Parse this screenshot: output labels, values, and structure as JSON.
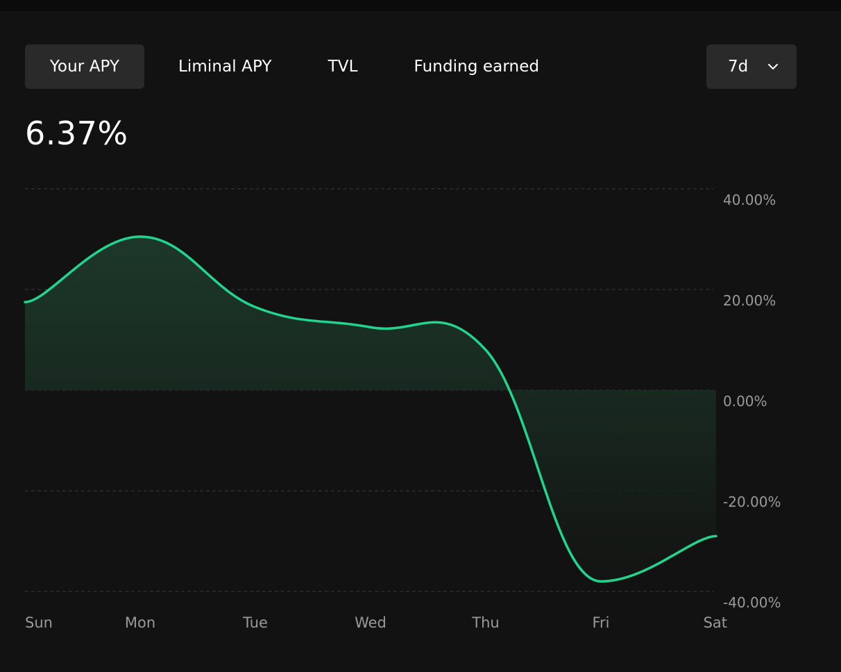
{
  "tabs": [
    {
      "label": "Your APY",
      "active": true
    },
    {
      "label": "Liminal APY",
      "active": false
    },
    {
      "label": "TVL",
      "active": false
    },
    {
      "label": "Funding earned",
      "active": false
    }
  ],
  "range_select": {
    "value": "7d",
    "icon": "chevron-down-icon"
  },
  "headline_value": "6.37%",
  "colors": {
    "background": "#121212",
    "line": "#22d58f",
    "fill": "#1b3328",
    "grid": "#3a3a3a",
    "tab_active": "#2a2a2a"
  },
  "chart_data": {
    "type": "area",
    "categories": [
      "Sun",
      "Mon",
      "Tue",
      "Wed",
      "Thu",
      "Fri",
      "Sat"
    ],
    "values": [
      17.5,
      30.5,
      16.5,
      12.5,
      8.0,
      -38.0,
      -29.0
    ],
    "ylim": [
      -40,
      40
    ],
    "yticks": [
      "40.00%",
      "20.00%",
      "0.00%",
      "-20.00%",
      "-40.00%"
    ],
    "ytick_values": [
      40,
      20,
      0,
      -20,
      -40
    ],
    "grid": true,
    "title": "",
    "xlabel": "",
    "ylabel": ""
  }
}
